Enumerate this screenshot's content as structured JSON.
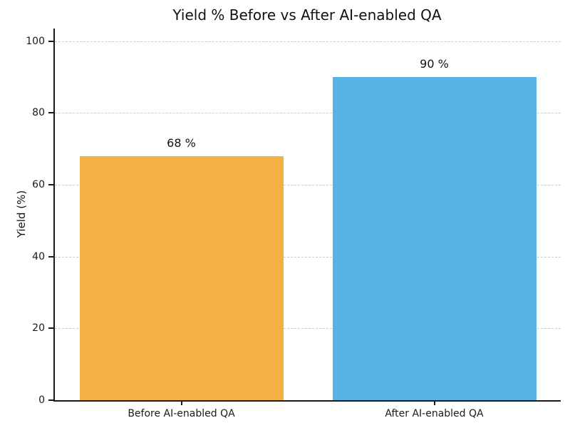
{
  "figure": {
    "background": "#ffffff"
  },
  "chart_data": {
    "type": "bar",
    "title": "Yield % Before vs After AI-enabled QA",
    "xlabel": "",
    "ylabel": "Yield (%)",
    "categories": [
      "Before AI-enabled QA",
      "After AI-enabled QA"
    ],
    "values": [
      68,
      90
    ],
    "value_labels": [
      "68 %",
      "90 %"
    ],
    "yticks": [
      0,
      20,
      40,
      60,
      80,
      100
    ],
    "ylim": [
      0,
      103.5
    ],
    "bar_colors": [
      "#F2B045",
      "#57B3E2"
    ],
    "grid": {
      "axis": "y",
      "style": "dashed",
      "color": "#cccccc"
    },
    "legend": "none",
    "spine_color": "#1a1a1a",
    "text_color": "#1a1a1a"
  }
}
